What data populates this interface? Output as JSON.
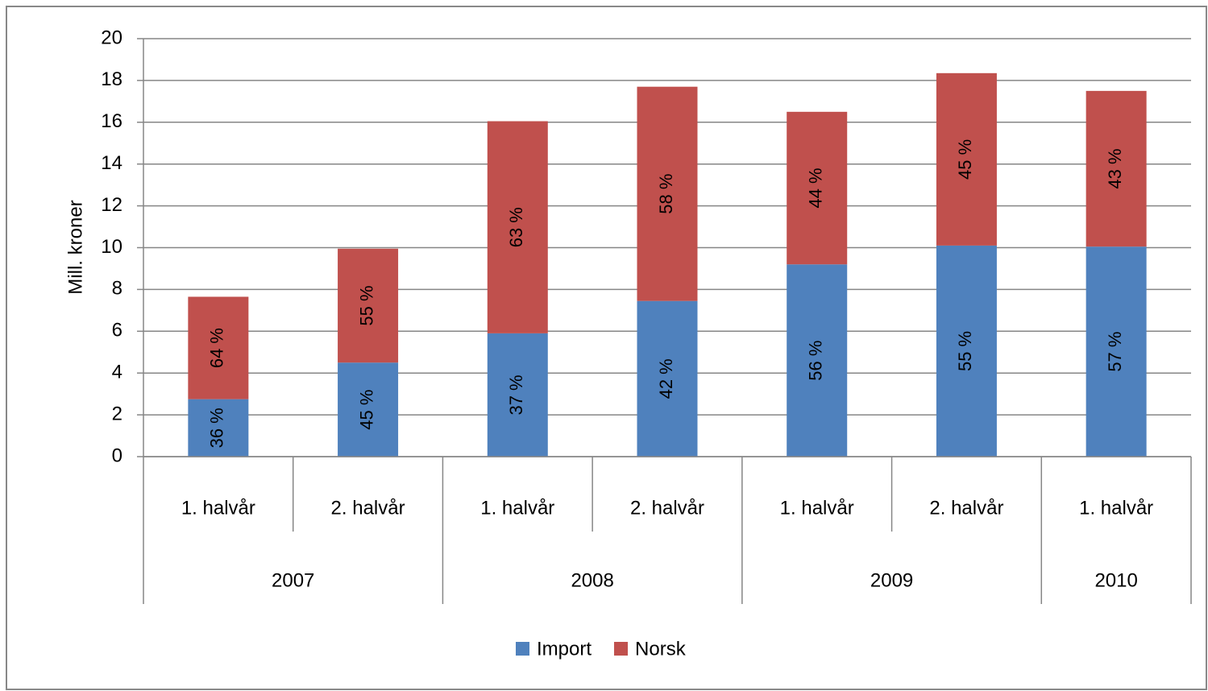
{
  "chart_data": {
    "type": "stacked_bar",
    "y_axis_label": "Mill. kroner",
    "categories": [
      "1. halvår",
      "2. halvår",
      "1. halvår",
      "2. halvår",
      "1. halvår",
      "2. halvår",
      "1. halvår"
    ],
    "groups": [
      {
        "name": "2007",
        "span": 2
      },
      {
        "name": "2008",
        "span": 2
      },
      {
        "name": "2009",
        "span": 2
      },
      {
        "name": "2010",
        "span": 1
      }
    ],
    "series": [
      {
        "name": "Import",
        "color": "#4f81bd",
        "values": [
          2.75,
          4.5,
          5.9,
          7.45,
          9.2,
          10.1,
          10.05
        ],
        "share_labels": [
          "36 %",
          "45 %",
          "37 %",
          "42 %",
          "56 %",
          "55 %",
          "57 %"
        ]
      },
      {
        "name": "Norsk",
        "color": "#c0504d",
        "values": [
          4.9,
          5.45,
          10.15,
          10.25,
          7.3,
          8.25,
          7.45
        ],
        "share_labels": [
          "64 %",
          "55 %",
          "63 %",
          "58 %",
          "44 %",
          "45 %",
          "43 %"
        ]
      }
    ],
    "ylim": [
      0,
      20
    ],
    "yticks": [
      0,
      2,
      4,
      6,
      8,
      10,
      12,
      14,
      16,
      18,
      20
    ],
    "grid": true,
    "legend": "bottom"
  }
}
